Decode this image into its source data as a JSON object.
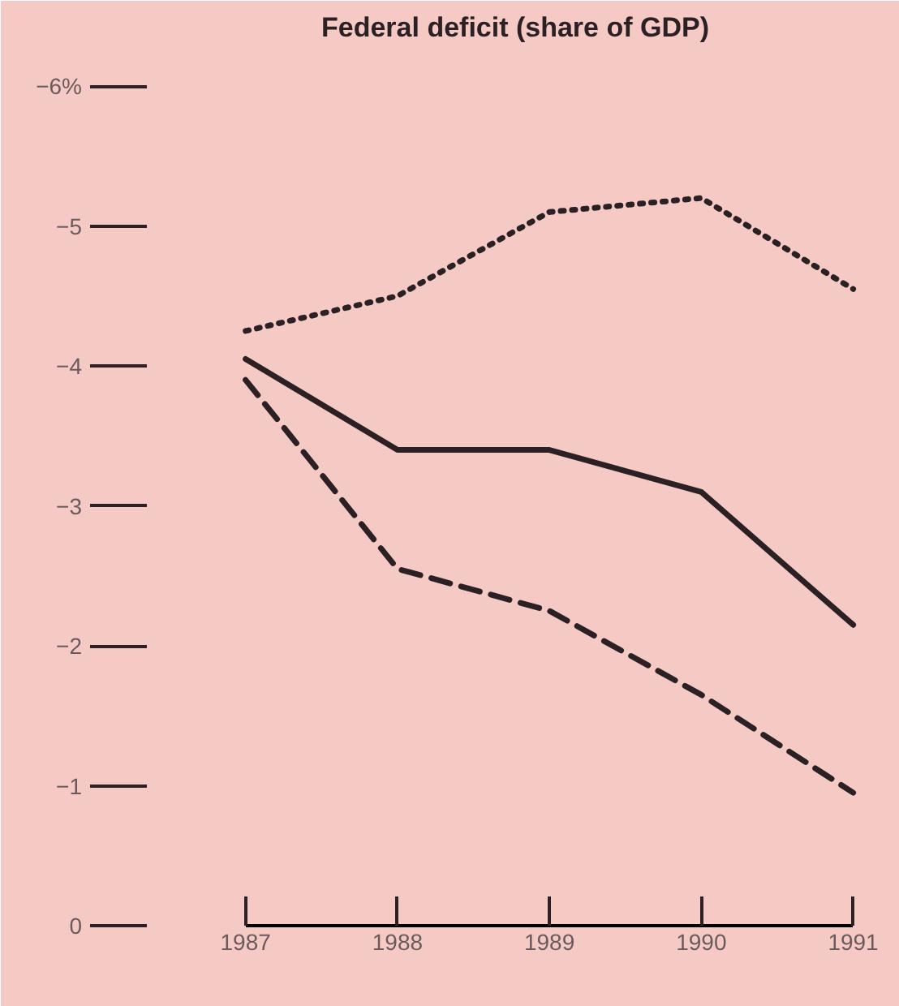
{
  "chart_data": {
    "type": "line",
    "title": "Federal deficit (share of GDP)",
    "x": [
      1987,
      1988,
      1989,
      1990,
      1991
    ],
    "xlim": [
      1986.35,
      1991.2
    ],
    "xticks": [
      1987,
      1988,
      1989,
      1990,
      1991
    ],
    "ylim": [
      0,
      -6.25
    ],
    "yticks": [
      0,
      -1,
      -2,
      -3,
      -4,
      {
        "value": -5,
        "label": "−5"
      },
      {
        "value": -6,
        "label": "−6%"
      }
    ],
    "series": [
      {
        "color": "#2b2024",
        "line_style": "solid",
        "values": [
          -4.05,
          -3.4,
          -3.4,
          -3.1,
          -2.15
        ]
      },
      {
        "color": "#2b2024",
        "line_style": "dashed",
        "values": [
          -3.9,
          -2.55,
          -2.25,
          -1.65,
          -0.95
        ]
      },
      {
        "color": "#2b2024",
        "line_style": "dotted",
        "values": [
          -4.25,
          -4.5,
          -5.1,
          -5.2,
          -4.55
        ]
      }
    ]
  }
}
